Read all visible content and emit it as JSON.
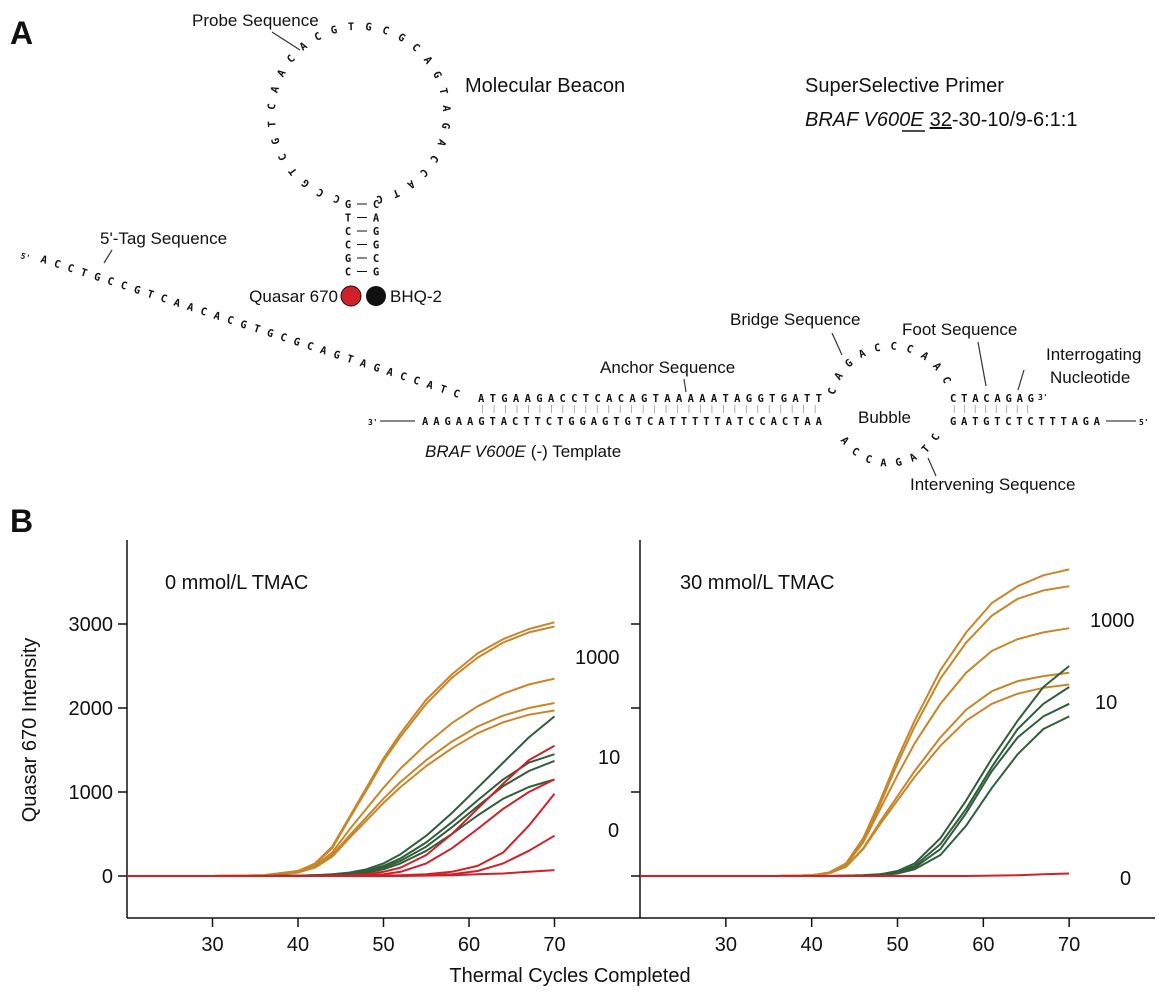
{
  "diagram": {
    "panel_label": "A",
    "probe_label": "Probe Sequence",
    "beacon_title": "Molecular Beacon",
    "primer_title": "SuperSelective Primer",
    "primer_name": "BRAF V600E",
    "primer_code_underlined": "32",
    "primer_code_rest": "-30-10/9-6:1:1",
    "loop_sequence": "CCGTCGTCAACACGTGCGCAGTAGACCATC",
    "stem_left": [
      "G",
      "T",
      "C",
      "C",
      "G",
      "C"
    ],
    "stem_right": [
      "C",
      "A",
      "G",
      "G",
      "C",
      "G"
    ],
    "fluorophore": "Quasar 670",
    "quencher": "BHQ-2",
    "tag_label": "5'-Tag  Sequence",
    "tag_end": "5'",
    "tag_sequence": "ACCTGCCGTCAACACGTGCGCAGTAGACCATC",
    "anchor_label": "Anchor Sequence",
    "anchor_sequence": "ATGAAGACCTCACAGTAAAAATAGGTGATT",
    "template_left_end": "3'",
    "template_left": "AAGAAGTACTTCTGGAGTGTCATTTTTATCCACTAA",
    "template_name": "BRAF V600E",
    "template_suffix": "(-) Template",
    "bridge_label": "Bridge Sequence",
    "bridge_sequence": "CAGACCCAAC",
    "bubble_label": "Bubble",
    "intervening_label": "Intervening Sequence",
    "intervening_sequence": "ACCAGATC",
    "foot_label": "Foot Sequence",
    "foot_sequence": "CTACAGAG",
    "primer_end": "3'",
    "interrogating_label": [
      "Interrogating",
      "Nucleotide"
    ],
    "template_right": "GATGTCTCTTTAGA",
    "template_right_end": "5'"
  },
  "figure_b": {
    "panel_label": "B",
    "ylabel": "Quasar 670 Intensity",
    "xlabel": "Thermal Cycles Completed"
  },
  "chart_data": [
    {
      "type": "line",
      "title": "0 mmol/L TMAC",
      "x": [
        20,
        30,
        36,
        40,
        42,
        44,
        46,
        48,
        50,
        52,
        55,
        58,
        61,
        64,
        67,
        70
      ],
      "xlim": [
        20,
        80
      ],
      "xticks": [
        30,
        40,
        50,
        60,
        70
      ],
      "ylim": [
        -500,
        4000
      ],
      "yticks": [
        0,
        1000,
        2000,
        3000
      ],
      "ytick_labels": true,
      "annotations": [
        "1000",
        "10",
        "0"
      ],
      "series": [
        {
          "color": "#c8862a",
          "values": [
            0,
            0,
            10,
            60,
            150,
            350,
            700,
            1050,
            1400,
            1700,
            2100,
            2400,
            2650,
            2820,
            2940,
            3020
          ]
        },
        {
          "color": "#c8862a",
          "values": [
            0,
            0,
            10,
            60,
            140,
            330,
            680,
            1020,
            1370,
            1660,
            2050,
            2360,
            2600,
            2780,
            2900,
            2970
          ]
        },
        {
          "color": "#c8862a",
          "values": [
            0,
            0,
            8,
            50,
            120,
            280,
            550,
            800,
            1050,
            1280,
            1570,
            1820,
            2020,
            2170,
            2280,
            2350
          ]
        },
        {
          "color": "#c8862a",
          "values": [
            0,
            0,
            8,
            45,
            110,
            250,
            480,
            700,
            920,
            1120,
            1380,
            1600,
            1780,
            1910,
            2000,
            2060
          ]
        },
        {
          "color": "#c8862a",
          "values": [
            0,
            0,
            7,
            40,
            100,
            230,
            450,
            660,
            870,
            1060,
            1310,
            1520,
            1700,
            1830,
            1920,
            1970
          ]
        },
        {
          "color": "#2f5e3a",
          "values": [
            0,
            0,
            0,
            5,
            10,
            20,
            40,
            80,
            150,
            260,
            480,
            750,
            1050,
            1350,
            1650,
            1900
          ]
        },
        {
          "color": "#2f5e3a",
          "values": [
            0,
            0,
            0,
            5,
            10,
            15,
            30,
            60,
            120,
            210,
            400,
            640,
            900,
            1150,
            1350,
            1450
          ]
        },
        {
          "color": "#2f5e3a",
          "values": [
            0,
            0,
            0,
            3,
            8,
            12,
            25,
            50,
            100,
            180,
            350,
            580,
            830,
            1070,
            1250,
            1370
          ]
        },
        {
          "color": "#2f5e3a",
          "values": [
            0,
            0,
            0,
            3,
            6,
            10,
            20,
            40,
            80,
            150,
            300,
            500,
            720,
            920,
            1060,
            1150
          ]
        },
        {
          "color": "#d0202a",
          "values": [
            0,
            0,
            0,
            0,
            0,
            5,
            10,
            20,
            50,
            100,
            250,
            500,
            800,
            1100,
            1380,
            1550
          ]
        },
        {
          "color": "#d0202a",
          "values": [
            0,
            0,
            0,
            0,
            0,
            0,
            5,
            10,
            20,
            50,
            150,
            330,
            560,
            800,
            1000,
            1150
          ]
        },
        {
          "color": "#d0202a",
          "values": [
            0,
            0,
            0,
            0,
            0,
            0,
            0,
            0,
            5,
            10,
            20,
            50,
            120,
            280,
            600,
            980
          ]
        },
        {
          "color": "#d0202a",
          "values": [
            0,
            0,
            0,
            0,
            0,
            0,
            0,
            0,
            0,
            5,
            10,
            20,
            60,
            150,
            300,
            480
          ]
        },
        {
          "color": "#d0202a",
          "values": [
            0,
            0,
            0,
            0,
            0,
            0,
            0,
            0,
            0,
            0,
            5,
            10,
            20,
            30,
            50,
            70
          ]
        }
      ]
    },
    {
      "type": "line",
      "title": "30 mmol/L TMAC",
      "x": [
        20,
        30,
        36,
        40,
        42,
        44,
        46,
        48,
        50,
        52,
        55,
        58,
        61,
        64,
        67,
        70
      ],
      "xlim": [
        20,
        80
      ],
      "xticks": [
        30,
        40,
        50,
        60,
        70
      ],
      "ylim": [
        -500,
        4000
      ],
      "yticks": [
        0,
        1000,
        2000,
        3000
      ],
      "ytick_labels": false,
      "annotations": [
        "1000",
        "10",
        "0"
      ],
      "series": [
        {
          "color": "#c8862a",
          "values": [
            0,
            0,
            0,
            10,
            40,
            150,
            450,
            900,
            1400,
            1850,
            2450,
            2900,
            3250,
            3450,
            3580,
            3650
          ]
        },
        {
          "color": "#c8862a",
          "values": [
            0,
            0,
            0,
            10,
            40,
            140,
            420,
            860,
            1340,
            1780,
            2350,
            2780,
            3100,
            3300,
            3400,
            3450
          ]
        },
        {
          "color": "#c8862a",
          "values": [
            0,
            0,
            0,
            8,
            35,
            130,
            400,
            800,
            1200,
            1580,
            2050,
            2420,
            2680,
            2820,
            2900,
            2950
          ]
        },
        {
          "color": "#c8862a",
          "values": [
            0,
            0,
            0,
            8,
            30,
            110,
            330,
            650,
            950,
            1250,
            1650,
            1980,
            2200,
            2320,
            2380,
            2420
          ]
        },
        {
          "color": "#c8862a",
          "values": [
            0,
            0,
            0,
            8,
            30,
            110,
            320,
            620,
            900,
            1180,
            1550,
            1850,
            2050,
            2170,
            2240,
            2280
          ]
        },
        {
          "color": "#2f5e3a",
          "values": [
            0,
            0,
            0,
            0,
            0,
            5,
            10,
            20,
            60,
            150,
            450,
            900,
            1400,
            1850,
            2250,
            2500
          ]
        },
        {
          "color": "#2f5e3a",
          "values": [
            0,
            0,
            0,
            0,
            0,
            5,
            10,
            20,
            50,
            120,
            380,
            800,
            1300,
            1750,
            2050,
            2250
          ]
        },
        {
          "color": "#2f5e3a",
          "values": [
            0,
            0,
            0,
            0,
            0,
            0,
            5,
            15,
            40,
            100,
            320,
            750,
            1250,
            1650,
            1900,
            2050
          ]
        },
        {
          "color": "#2f5e3a",
          "values": [
            0,
            0,
            0,
            0,
            0,
            0,
            5,
            10,
            30,
            80,
            250,
            600,
            1050,
            1450,
            1750,
            1900
          ]
        },
        {
          "color": "#d0202a",
          "values": [
            0,
            0,
            0,
            0,
            0,
            0,
            0,
            0,
            0,
            0,
            0,
            0,
            5,
            10,
            20,
            30
          ]
        }
      ]
    }
  ]
}
